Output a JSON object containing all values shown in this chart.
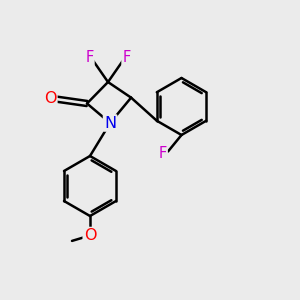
{
  "bg_color": "#ebebeb",
  "bond_color": "#000000",
  "bond_width": 1.8,
  "atom_colors": {
    "F": "#cc00cc",
    "O": "#ff0000",
    "N": "#0000ee",
    "C": "#000000"
  },
  "figsize": [
    3.0,
    3.0
  ],
  "dpi": 100
}
